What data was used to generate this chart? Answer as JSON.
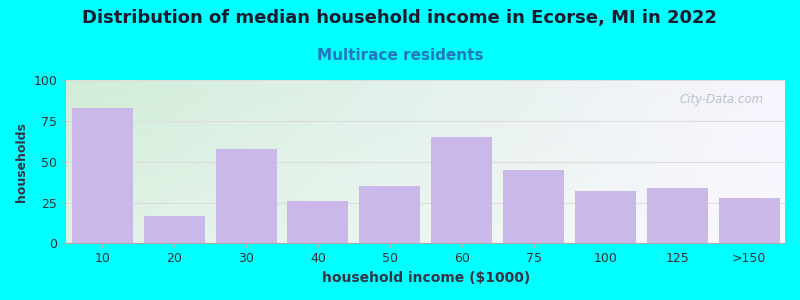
{
  "title": "Distribution of median household income in Ecorse, MI in 2022",
  "subtitle": "Multirace residents",
  "xlabel": "household income ($1000)",
  "ylabel": "households",
  "categories": [
    "10",
    "20",
    "30",
    "40",
    "50",
    "60",
    "75",
    "100",
    "125",
    ">150"
  ],
  "values": [
    83,
    17,
    58,
    26,
    35,
    65,
    45,
    32,
    34,
    28
  ],
  "bar_color": "#c9b8e8",
  "bar_edge_color": "#c9b8e8",
  "ylim": [
    0,
    100
  ],
  "yticks": [
    0,
    25,
    50,
    75,
    100
  ],
  "background_color": "#00ffff",
  "title_fontsize": 13,
  "title_color": "#1a1a2e",
  "subtitle_fontsize": 11,
  "subtitle_color": "#2277bb",
  "xlabel_fontsize": 10,
  "ylabel_fontsize": 9,
  "tick_fontsize": 9,
  "watermark": "City-Data.com",
  "watermark_color": "#b0b8c8",
  "grid_color": "#dddddd",
  "plot_bg_colors": [
    "#d0edd8",
    "#ffffff",
    "#f0eeff"
  ]
}
